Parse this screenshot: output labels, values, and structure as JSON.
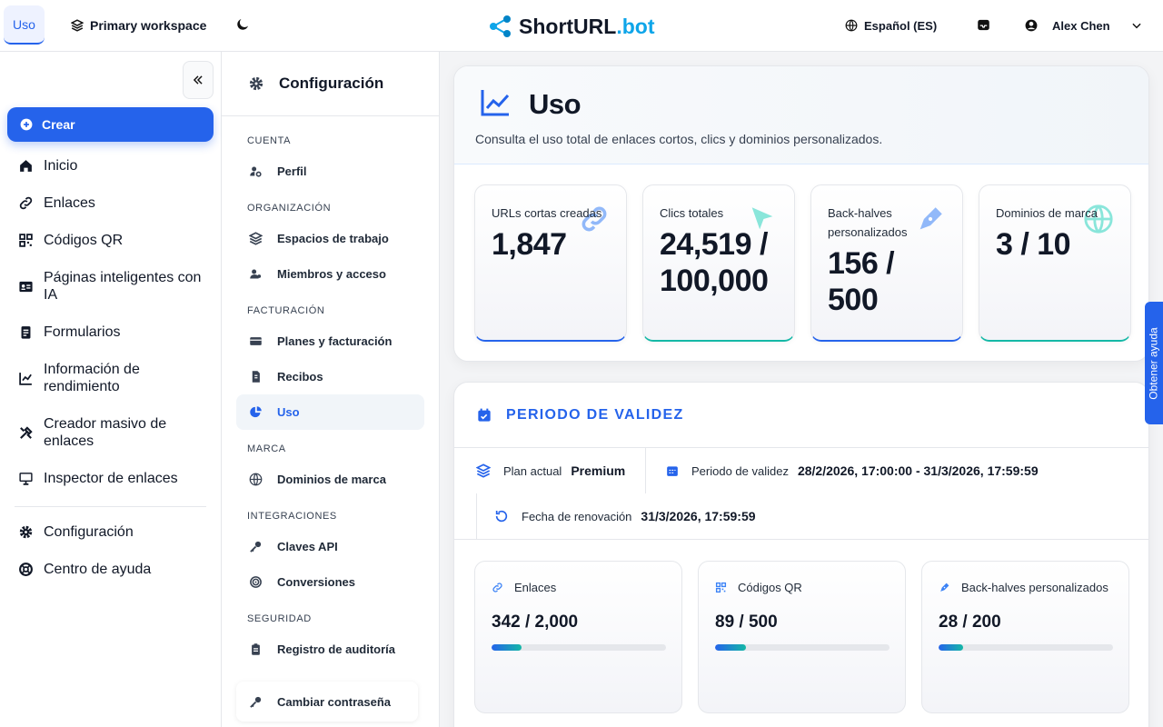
{
  "topbar": {
    "active_tab": "Uso",
    "workspace": "Primary workspace",
    "logo": {
      "main": "ShortURL",
      "suffix": ".bot"
    },
    "language": "Español (ES)",
    "user": "Alex Chen"
  },
  "sidebar": {
    "create": "Crear",
    "items": [
      "Inicio",
      "Enlaces",
      "Códigos QR",
      "Páginas inteligentes con IA",
      "Formularios",
      "Información de rendimiento",
      "Creador masivo de enlaces",
      "Inspector de enlaces"
    ],
    "footer_items": [
      "Configuración",
      "Centro de ayuda"
    ]
  },
  "settings_nav": {
    "title": "Configuración",
    "sections": [
      {
        "heading": "CUENTA",
        "items": [
          "Perfil"
        ]
      },
      {
        "heading": "ORGANIZACIÓN",
        "items": [
          "Espacios de trabajo",
          "Miembros y acceso"
        ]
      },
      {
        "heading": "FACTURACIÓN",
        "items": [
          "Planes y facturación",
          "Recibos",
          "Uso"
        ]
      },
      {
        "heading": "MARCA",
        "items": [
          "Dominios de marca"
        ]
      },
      {
        "heading": "INTEGRACIONES",
        "items": [
          "Claves API",
          "Conversiones"
        ]
      },
      {
        "heading": "SEGURIDAD",
        "items": [
          "Registro de auditoría"
        ]
      }
    ],
    "footer_item": "Cambiar contraseña"
  },
  "page": {
    "title": "Uso",
    "subtitle": "Consulta el uso total de enlaces cortos, clics y dominios personalizados."
  },
  "stats": [
    {
      "label": "URLs cortas creadas",
      "value": "1,847"
    },
    {
      "label": "Clics totales",
      "value": "24,519 / 100,000"
    },
    {
      "label": "Back-halves personalizados",
      "value": "156 / 500"
    },
    {
      "label": "Dominios de marca",
      "value": "3 / 10"
    }
  ],
  "validity": {
    "title": "PERIODO DE VALIDEZ",
    "plan_label": "Plan actual",
    "plan": "Premium",
    "period_label": "Periodo de validez",
    "period": "28/2/2026, 17:00:00 - 31/3/2026, 17:59:59",
    "renewal_label": "Fecha de renovación",
    "renewal": "31/3/2026, 17:59:59"
  },
  "usage": [
    {
      "label": "Enlaces",
      "used": 342,
      "limit": 2000,
      "value_label": "342 / 2,000"
    },
    {
      "label": "Códigos QR",
      "used": 89,
      "limit": 500,
      "value_label": "89 / 500"
    },
    {
      "label": "Back-halves personalizados",
      "used": 28,
      "limit": 200,
      "value_label": "28 / 200"
    }
  ],
  "help_tab": "Obtener ayuda"
}
